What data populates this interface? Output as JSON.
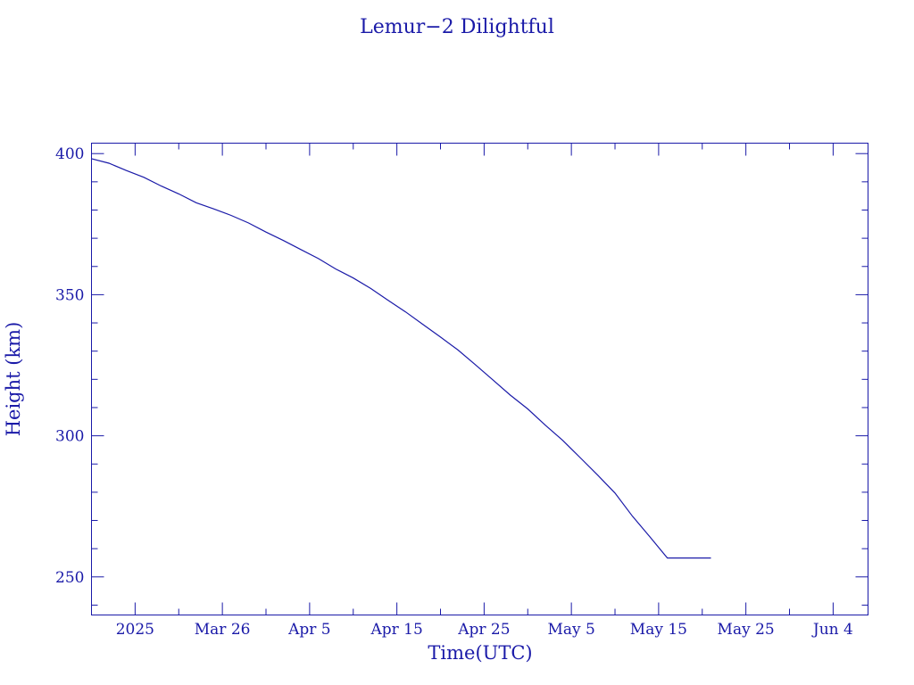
{
  "chart_data": {
    "type": "line",
    "title": "Lemur−2 Dilightful",
    "xlabel": "Time(UTC)",
    "ylabel": "Height (km)",
    "x_axis": {
      "type": "date",
      "range": [
        "2025-03-11",
        "2025-06-08"
      ],
      "major_ticks": [
        {
          "date": "2025-03-16",
          "label": "2025"
        },
        {
          "date": "2025-03-26",
          "label": "Mar 26"
        },
        {
          "date": "2025-04-05",
          "label": "Apr  5"
        },
        {
          "date": "2025-04-15",
          "label": "Apr 15"
        },
        {
          "date": "2025-04-25",
          "label": "Apr 25"
        },
        {
          "date": "2025-05-05",
          "label": "May  5"
        },
        {
          "date": "2025-05-15",
          "label": "May 15"
        },
        {
          "date": "2025-05-25",
          "label": "May 25"
        },
        {
          "date": "2025-06-04",
          "label": "Jun  4"
        }
      ]
    },
    "y_axis": {
      "range": [
        236.5,
        403.7
      ],
      "major_ticks": [
        250,
        300,
        350,
        400
      ],
      "minor_step": 10
    },
    "grid": false,
    "legend": "none",
    "color": "#1a1aa8",
    "series": [
      {
        "x": [
          "2025-03-11",
          "2025-03-13",
          "2025-03-15",
          "2025-03-17",
          "2025-03-19",
          "2025-03-21",
          "2025-03-23",
          "2025-03-25",
          "2025-03-27",
          "2025-03-29",
          "2025-03-31",
          "2025-04-02",
          "2025-04-04",
          "2025-04-06",
          "2025-04-08",
          "2025-04-10",
          "2025-04-12",
          "2025-04-14",
          "2025-04-16",
          "2025-04-18",
          "2025-04-20",
          "2025-04-22",
          "2025-04-24",
          "2025-04-26",
          "2025-04-28",
          "2025-04-30",
          "2025-05-02",
          "2025-05-04",
          "2025-05-06",
          "2025-05-08",
          "2025-05-10",
          "2025-05-12",
          "2025-05-14",
          "2025-05-16",
          "2025-05-18",
          "2025-05-20",
          "2025-05-21"
        ],
        "y": [
          398.2,
          396.6,
          394.0,
          391.6,
          388.5,
          385.7,
          382.6,
          380.4,
          378.1,
          375.4,
          372.2,
          369.2,
          366.0,
          362.8,
          359.1,
          355.9,
          352.2,
          348.0,
          343.9,
          339.4,
          335.0,
          330.4,
          325.2,
          319.8,
          314.4,
          309.5,
          303.8,
          298.4,
          292.3,
          286.1,
          279.7,
          271.5,
          264.2,
          256.7,
          256.7,
          256.7,
          256.7
        ]
      }
    ]
  }
}
